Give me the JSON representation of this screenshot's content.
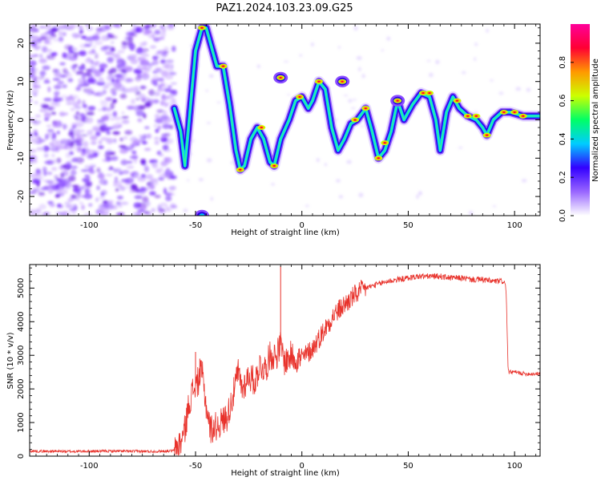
{
  "page": {
    "title": "PAZ1.2024.103.23.09.G25"
  },
  "chart_data": [
    {
      "type": "heatmap",
      "title": "PAZ1.2024.103.23.09.G25",
      "xlabel": "Height of straight line (km)",
      "ylabel": "Frequency (Hz)",
      "xlim": [
        -128,
        112
      ],
      "ylim": [
        -25,
        25
      ],
      "xticks": [
        -100,
        -50,
        0,
        50,
        100
      ],
      "yticks": [
        -20,
        -10,
        0,
        10,
        20
      ],
      "colorbar": {
        "label": "Normalized spectral amplitude",
        "range": [
          0,
          1
        ],
        "ticks": [
          0.0,
          0.2,
          0.4,
          0.6,
          0.8
        ],
        "colors": [
          "#ffffff",
          "#9966ff",
          "#3300ff",
          "#00ccff",
          "#00ff66",
          "#ccff00",
          "#ff9900",
          "#ff0033",
          "#ff0099"
        ]
      },
      "noise_region_x": [
        -128,
        -60
      ],
      "tone_track": [
        {
          "x": -60,
          "y": 3
        },
        {
          "x": -57,
          "y": -3
        },
        {
          "x": -55,
          "y": -12
        },
        {
          "x": -53,
          "y": 0
        },
        {
          "x": -50,
          "y": 18
        },
        {
          "x": -47,
          "y": 24
        },
        {
          "x": -45,
          "y": 24
        },
        {
          "x": -43,
          "y": 20
        },
        {
          "x": -40,
          "y": 14
        },
        {
          "x": -37,
          "y": 14
        },
        {
          "x": -34,
          "y": 4
        },
        {
          "x": -31,
          "y": -8
        },
        {
          "x": -29,
          "y": -13
        },
        {
          "x": -27,
          "y": -12
        },
        {
          "x": -24,
          "y": -5
        },
        {
          "x": -21,
          "y": -2
        },
        {
          "x": -18,
          "y": -5
        },
        {
          "x": -15,
          "y": -11
        },
        {
          "x": -13,
          "y": -12
        },
        {
          "x": -10,
          "y": -5
        },
        {
          "x": -6,
          "y": 0
        },
        {
          "x": -3,
          "y": 5
        },
        {
          "x": 0,
          "y": 6
        },
        {
          "x": 3,
          "y": 3
        },
        {
          "x": 5,
          "y": 5
        },
        {
          "x": 8,
          "y": 10
        },
        {
          "x": 11,
          "y": 8
        },
        {
          "x": 14,
          "y": -2
        },
        {
          "x": 17,
          "y": -8
        },
        {
          "x": 20,
          "y": -5
        },
        {
          "x": 23,
          "y": -1
        },
        {
          "x": 26,
          "y": 0
        },
        {
          "x": 30,
          "y": 3
        },
        {
          "x": 33,
          "y": -3
        },
        {
          "x": 36,
          "y": -10
        },
        {
          "x": 39,
          "y": -8
        },
        {
          "x": 42,
          "y": -3
        },
        {
          "x": 45,
          "y": 5
        },
        {
          "x": 48,
          "y": 0
        },
        {
          "x": 52,
          "y": 4
        },
        {
          "x": 56,
          "y": 7
        },
        {
          "x": 60,
          "y": 6
        },
        {
          "x": 63,
          "y": 0
        },
        {
          "x": 65,
          "y": -8
        },
        {
          "x": 68,
          "y": 2
        },
        {
          "x": 71,
          "y": 6
        },
        {
          "x": 74,
          "y": 3
        },
        {
          "x": 78,
          "y": 1
        },
        {
          "x": 82,
          "y": 0
        },
        {
          "x": 85,
          "y": -2
        },
        {
          "x": 87,
          "y": -4
        },
        {
          "x": 90,
          "y": 0
        },
        {
          "x": 94,
          "y": 2
        },
        {
          "x": 98,
          "y": 2
        },
        {
          "x": 104,
          "y": 1
        },
        {
          "x": 112,
          "y": 1
        }
      ],
      "bright_spots": [
        {
          "x": -47,
          "y": 24
        },
        {
          "x": -37,
          "y": 14
        },
        {
          "x": -29,
          "y": -13
        },
        {
          "x": -10,
          "y": 11
        },
        {
          "x": -19,
          "y": -2
        },
        {
          "x": -13,
          "y": -12
        },
        {
          "x": -1,
          "y": 6
        },
        {
          "x": 8,
          "y": 10
        },
        {
          "x": 19,
          "y": 10
        },
        {
          "x": 25,
          "y": 0
        },
        {
          "x": 30,
          "y": 3
        },
        {
          "x": 36,
          "y": -10
        },
        {
          "x": 39,
          "y": -6
        },
        {
          "x": 45,
          "y": 5
        },
        {
          "x": 57,
          "y": 7
        },
        {
          "x": 60,
          "y": 7
        },
        {
          "x": 73,
          "y": 5
        },
        {
          "x": 78,
          "y": 1
        },
        {
          "x": 82,
          "y": 1
        },
        {
          "x": 87,
          "y": -4
        },
        {
          "x": 95,
          "y": 2
        },
        {
          "x": 100,
          "y": 2
        },
        {
          "x": 104,
          "y": 1
        }
      ],
      "grid": false,
      "legend": "none"
    },
    {
      "type": "line",
      "xlabel": "Height of straight line (km)",
      "ylabel": "SNR (10 * v/v)",
      "xlim": [
        -128,
        112
      ],
      "ylim": [
        0,
        5700
      ],
      "xticks": [
        -100,
        -50,
        0,
        50,
        100
      ],
      "yticks": [
        0,
        1000,
        2000,
        3000,
        4000,
        5000
      ],
      "color": "#e8312a",
      "series": [
        {
          "x": [
            -128,
            -110,
            -90,
            -70,
            -60,
            -57,
            -55,
            -53,
            -51,
            -49,
            -47,
            -45,
            -43,
            -40,
            -38,
            -35,
            -32,
            -30,
            -28,
            -25,
            -22,
            -20,
            -17,
            -15,
            -12,
            -10,
            -8,
            -5,
            -2,
            0,
            5,
            10,
            15,
            20,
            25,
            30,
            35,
            40,
            45,
            50,
            55,
            60,
            65,
            70,
            75,
            80,
            85,
            90,
            95,
            96,
            97,
            100,
            105,
            112
          ],
          "values": [
            150,
            140,
            150,
            140,
            160,
            400,
            800,
            1600,
            2000,
            2200,
            2500,
            1500,
            800,
            900,
            1000,
            1200,
            1900,
            2500,
            2000,
            2400,
            2200,
            2700,
            2600,
            3000,
            3000,
            3300,
            2800,
            3000,
            2900,
            2900,
            3200,
            3700,
            4200,
            4500,
            4800,
            5000,
            5100,
            5200,
            5250,
            5300,
            5350,
            5350,
            5350,
            5300,
            5300,
            5250,
            5250,
            5200,
            5200,
            5000,
            2500,
            2500,
            2450,
            2450
          ],
          "spikes": [
            {
              "x": -48,
              "y": 2900
            },
            {
              "x": -10,
              "y": 5650
            },
            {
              "x": -50,
              "y": 3100
            }
          ]
        }
      ],
      "grid": false,
      "legend": "none"
    }
  ]
}
